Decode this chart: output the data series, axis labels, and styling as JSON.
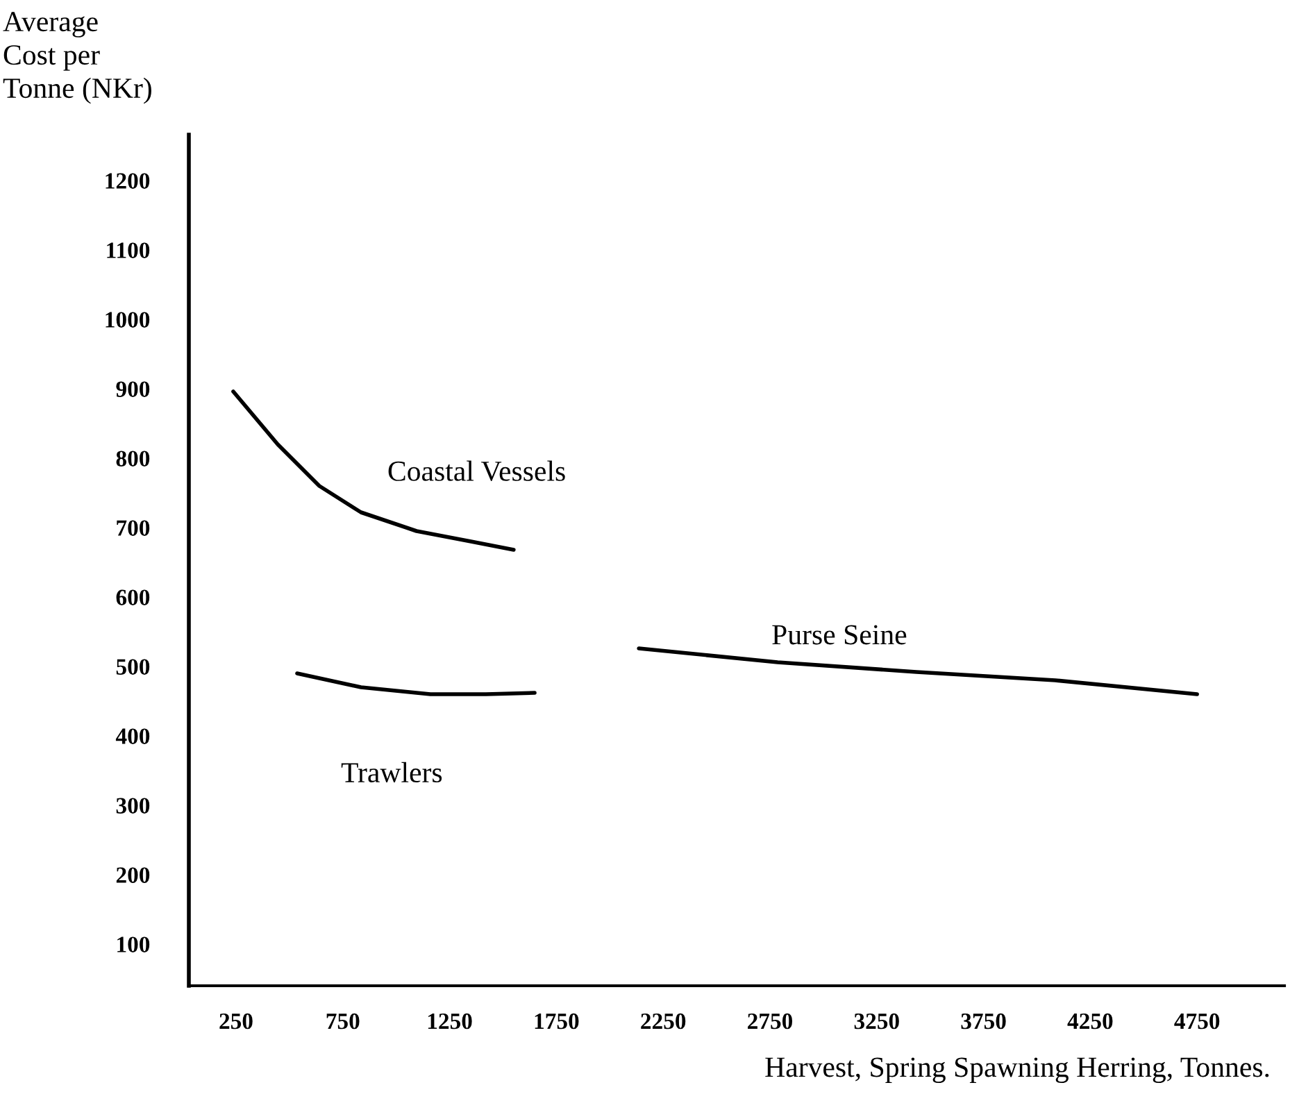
{
  "chart_data": {
    "type": "line",
    "ylabel": "Average\nCost per\nTonne (NKr)",
    "xlabel": "Harvest, Spring Spawning Herring, Tonnes.",
    "series": [
      {
        "name": "Coastal Vessels",
        "color": "#000000",
        "x": [
          237,
          445,
          640,
          835,
          1095,
          1350,
          1550
        ],
        "values": [
          896,
          820,
          760,
          722,
          695,
          680,
          668
        ]
      },
      {
        "name": "Trawlers",
        "color": "#000000",
        "x": [
          536,
          835,
          1160,
          1420,
          1648
        ],
        "values": [
          490,
          470,
          460,
          460,
          462
        ]
      },
      {
        "name": "Purse Seine",
        "color": "#000000",
        "x": [
          2136,
          2786,
          3436,
          4086,
          4750
        ],
        "values": [
          526,
          506,
          492,
          480,
          460
        ]
      }
    ],
    "xlim": [
      29,
      5159
    ],
    "ylim": [
      40,
      1266
    ],
    "xticks": [
      250,
      750,
      1250,
      1750,
      2250,
      2750,
      3250,
      3750,
      4250,
      4750
    ],
    "yticks": [
      100,
      200,
      300,
      400,
      500,
      600,
      700,
      800,
      900,
      1000,
      1100,
      1200
    ],
    "grid": false,
    "legend": false,
    "marker": "none",
    "line_style": "solid"
  }
}
